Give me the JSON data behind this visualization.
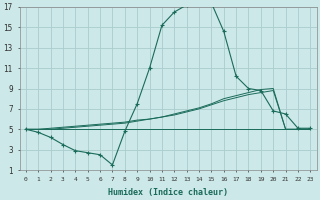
{
  "xlabel": "Humidex (Indice chaleur)",
  "bg_color": "#cce8e8",
  "grid_color": "#aacccc",
  "line_color": "#1a6b5a",
  "xlim": [
    -0.5,
    23.5
  ],
  "ylim": [
    1,
    17
  ],
  "ytick_values": [
    1,
    3,
    5,
    7,
    9,
    11,
    13,
    15,
    17
  ],
  "xtick_values": [
    0,
    1,
    2,
    3,
    4,
    5,
    6,
    7,
    8,
    9,
    10,
    11,
    12,
    13,
    14,
    15,
    16,
    17,
    18,
    19,
    20,
    21,
    22,
    23
  ],
  "xtick_labels": [
    "0",
    "1",
    "2",
    "3",
    "4",
    "5",
    "6",
    "7",
    "8",
    "9",
    "10",
    "11",
    "12",
    "13",
    "14",
    "15",
    "16",
    "17",
    "18",
    "19",
    "20",
    "21",
    "22",
    "23"
  ],
  "line1_x": [
    0,
    1,
    2,
    3,
    4,
    5,
    6,
    7,
    8,
    9,
    10,
    11,
    12,
    13,
    14,
    15,
    16,
    17,
    18,
    19,
    20,
    21,
    22,
    23
  ],
  "line1_y": [
    5.0,
    4.7,
    4.2,
    3.5,
    2.9,
    2.7,
    2.5,
    1.5,
    4.8,
    7.5,
    11.0,
    15.2,
    16.5,
    17.2,
    17.3,
    17.4,
    14.6,
    10.2,
    9.0,
    8.8,
    6.8,
    6.5,
    5.1,
    5.1
  ],
  "line2_x": [
    0,
    1,
    2,
    3,
    4,
    5,
    6,
    7,
    8,
    9,
    10,
    11,
    12,
    13,
    14,
    15,
    16,
    17,
    18,
    19,
    20,
    21,
    22,
    23
  ],
  "line2_y": [
    5.0,
    5.0,
    5.1,
    5.2,
    5.3,
    5.4,
    5.5,
    5.6,
    5.7,
    5.9,
    6.0,
    6.2,
    6.4,
    6.7,
    7.0,
    7.4,
    7.8,
    8.1,
    8.4,
    8.6,
    8.8,
    5.0,
    5.0,
    5.0
  ],
  "line3_x": [
    0,
    1,
    2,
    3,
    4,
    5,
    6,
    7,
    8,
    9,
    10,
    11,
    12,
    13,
    14,
    15,
    16,
    17,
    18,
    19,
    20,
    21,
    22,
    23
  ],
  "line3_y": [
    5.0,
    5.0,
    5.0,
    5.1,
    5.2,
    5.3,
    5.4,
    5.5,
    5.6,
    5.8,
    6.0,
    6.2,
    6.5,
    6.8,
    7.1,
    7.5,
    8.0,
    8.3,
    8.6,
    8.9,
    9.0,
    5.0,
    5.0,
    5.0
  ],
  "line4_x": [
    0,
    23
  ],
  "line4_y": [
    5.0,
    5.0
  ]
}
